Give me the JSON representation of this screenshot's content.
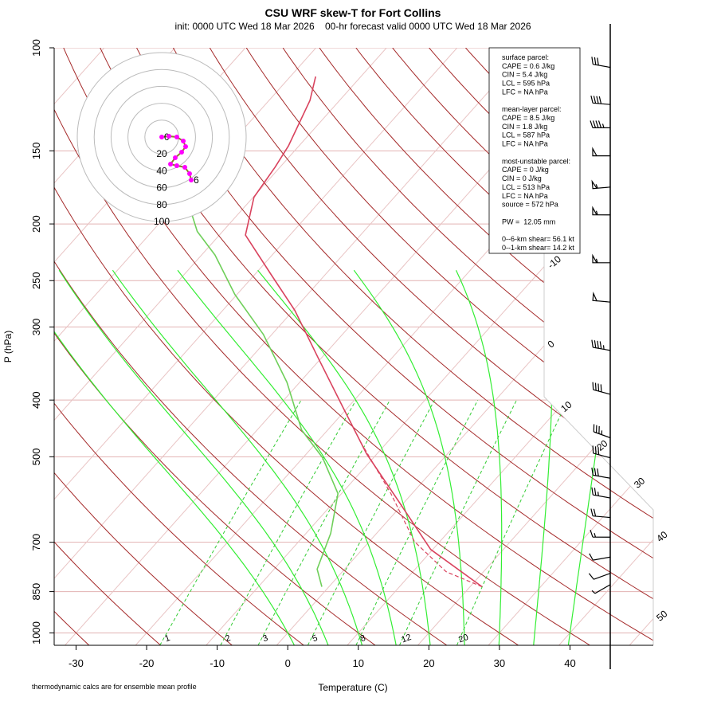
{
  "chart_data": {
    "type": "skewt",
    "title": "CSU WRF skew-T for Fort Collins",
    "subtitle": "init: 0000 UTC Wed 18 Mar 2026    00-hr forecast valid 0000 UTC Wed 18 Mar 2026",
    "x_label": "Temperature (C)",
    "y_label": "P (hPa)",
    "footnote": "thermodynamic calcs are for ensemble mean profile",
    "xlim": [
      -33.1,
      51.8
    ],
    "xticks": [
      -30,
      -20,
      -10,
      0,
      10,
      20,
      30,
      40
    ],
    "ylim": [
      1050,
      100
    ],
    "yticks": [
      100,
      150,
      200,
      250,
      300,
      400,
      500,
      700,
      850,
      1000
    ],
    "log_scale": true,
    "grid": true,
    "grid_color": "#e2b2b2",
    "isotherms": [
      -10,
      0,
      10,
      20,
      30,
      40,
      50
    ],
    "isotherm_color": "#e9c4c4",
    "isotherm_label_color": "#a52a2a",
    "dry_adiabat_color": "#a52a2a",
    "moist_adiabat_color": "#33ee33",
    "mixing_ratios": [
      1,
      2,
      3,
      5,
      8,
      12,
      20
    ],
    "mixing_ratio_color": "#33cc33",
    "series": [
      {
        "name": "temperature",
        "color": "#d9435e",
        "line_style": "solid",
        "pressure": [
          834,
          720,
          596,
          494,
          410,
          340,
          281,
          244,
          209,
          180,
          160,
          147,
          123,
          112
        ],
        "values": [
          21.7,
          9.7,
          -0.9,
          -11.5,
          -20.9,
          -30.3,
          -39.8,
          -47.7,
          -56.3,
          -59.9,
          -60.7,
          -61.5,
          -64.2,
          -66.4
        ]
      },
      {
        "name": "dewpoint",
        "color": "#6fcf5a",
        "line_style": "solid",
        "pressure": [
          834,
          778,
          676,
          578,
          502,
          450,
          373,
          309,
          264,
          226,
          206,
          187
        ],
        "values": [
          -1.0,
          -3.9,
          -6.5,
          -10.5,
          -17.2,
          -23.7,
          -31.8,
          -41.2,
          -50.3,
          -58.1,
          -63.6,
          -67.8
        ]
      },
      {
        "name": "parcel",
        "color": "#d9435e",
        "line_style": "dashed",
        "pressure": [
          834,
          786,
          698,
          578,
          479
        ],
        "values": [
          21.7,
          14.7,
          6.4,
          -3.0,
          -13.0
        ]
      }
    ],
    "winds": {
      "pressure": [
        108,
        125,
        137,
        153,
        173,
        193,
        233,
        272,
        329,
        391,
        464,
        502,
        544,
        588,
        635,
        686,
        742,
        791,
        827
      ],
      "speed": [
        30,
        40,
        45,
        50,
        55,
        55,
        55,
        50,
        45,
        40,
        35,
        30,
        30,
        25,
        20,
        15,
        10,
        10,
        5
      ],
      "direction": [
        280,
        275,
        270,
        270,
        265,
        270,
        270,
        275,
        280,
        285,
        290,
        285,
        280,
        280,
        275,
        270,
        260,
        250,
        240
      ]
    },
    "hodograph": {
      "rings": [
        20,
        40,
        60,
        80,
        100
      ],
      "line_color": "#8b7b2a",
      "point_color": "#ff00ff",
      "points": [
        {
          "u": 0,
          "v": 0,
          "label": "0"
        },
        {
          "u": 8.5,
          "v": 0.9
        },
        {
          "u": 17.9,
          "v": 0
        },
        {
          "u": 25.5,
          "v": -4.7
        },
        {
          "u": 28.3,
          "v": -11.3
        },
        {
          "u": 23.6,
          "v": -17.9
        },
        {
          "u": 16,
          "v": -24.5
        },
        {
          "u": 10.4,
          "v": -32.1
        },
        {
          "u": 17.9,
          "v": -34
        },
        {
          "u": 27.4,
          "v": -35.8
        },
        {
          "u": 33,
          "v": -43.4
        },
        {
          "u": 34.9,
          "v": -50.9,
          "label": "6"
        }
      ]
    },
    "stats": [
      [
        "surface parcel:",
        "CAPE = 0.6 J/kg",
        "CIN = 5.4 J/kg",
        "LCL = 595 hPa",
        "LFC = NA hPa"
      ],
      [
        "mean-layer parcel:",
        "CAPE = 8.5 J/kg",
        "CIN = 1.8 J/kg",
        "LCL = 587 hPa",
        "LFC = NA hPa"
      ],
      [
        "most-unstable parcel:",
        "CAPE = 0 J/kg",
        "CIN = 0 J/kg",
        "LCL = 513 hPa",
        "LFC = NA hPa",
        "source = 572 hPa"
      ],
      [
        "PW =  12.05 mm"
      ],
      [
        "0--6-km shear= 56.1 kt",
        "0--1-km shear= 14.2 kt"
      ]
    ]
  }
}
